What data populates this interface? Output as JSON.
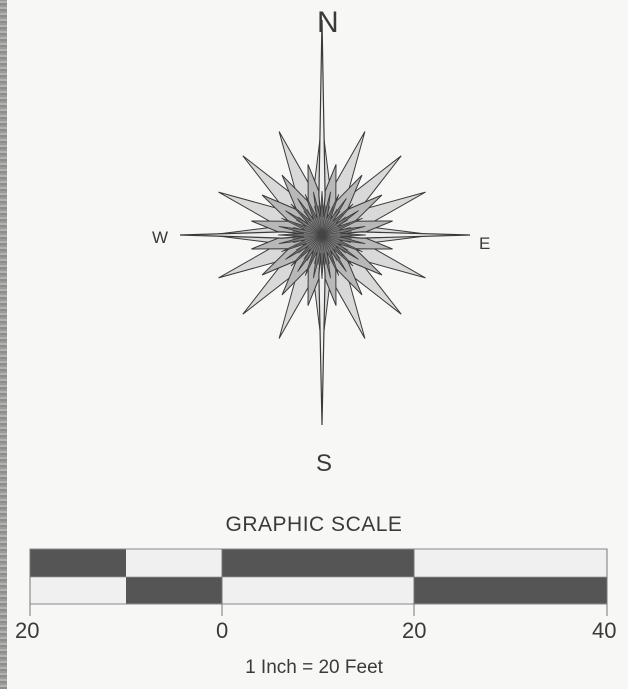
{
  "compass": {
    "north": "N",
    "east": "E",
    "south": "S",
    "west": "W"
  },
  "scale": {
    "title": "GRAPHIC SCALE",
    "tick_labels": [
      "20",
      "0",
      "20",
      "40"
    ],
    "ratio_text": "1 Inch = 20 Feet"
  },
  "colors": {
    "ink": "#3a3a3a",
    "dark_fill": "#555555",
    "light_fill": "#f0f0f0",
    "paper": "#f7f7f5"
  }
}
